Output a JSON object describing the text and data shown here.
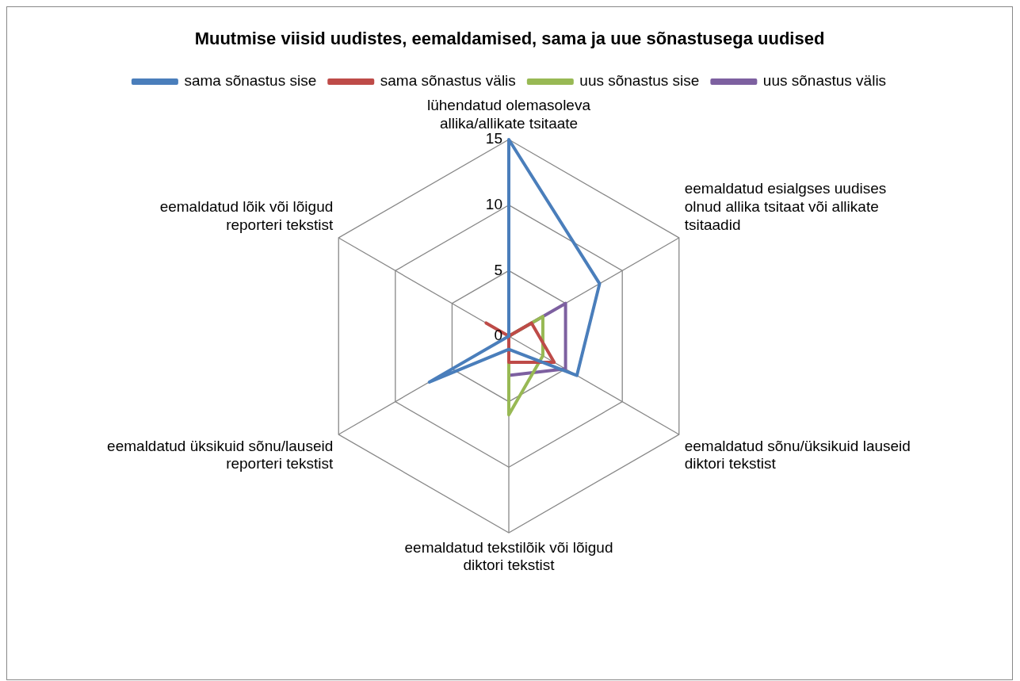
{
  "chart_data": {
    "type": "radar",
    "title": "Muutmise viisid uudistes, eemaldamised, sama ja uue sõnastusega uudised",
    "categories": [
      "lühendatud olemasoleva allika/allikate tsitaate",
      "eemaldatud esialgses uudises olnud allika tsitaat või allikate tsitaadid",
      "eemaldatud sõnu/üksikuid lauseid diktori tekstist",
      "eemaldatud tekstilõik või lõigud diktori tekstist",
      "eemaldatud üksikuid sõnu/lauseid reporteri tekstist",
      "eemaldatud lõik või lõigud reporteri tekstist"
    ],
    "series": [
      {
        "name": "sama sõnastus sise",
        "color": "#4a7ebb",
        "values": [
          15,
          8,
          6,
          1,
          7,
          0
        ]
      },
      {
        "name": "sama sõnastus välis",
        "color": "#be4b48",
        "values": [
          0,
          2,
          4,
          2,
          0,
          2
        ]
      },
      {
        "name": "uus sõnastus sise",
        "color": "#98b954",
        "values": [
          0,
          3,
          3,
          6,
          0,
          0
        ]
      },
      {
        "name": "uus sõnastus välis",
        "color": "#7d60a0",
        "values": [
          0,
          5,
          5,
          3,
          0,
          0
        ]
      }
    ],
    "ylim": [
      0,
      15
    ],
    "yticks": [
      0,
      5,
      10,
      15
    ],
    "grid": true,
    "legend": "top",
    "marker": "none",
    "line_style": "solid"
  }
}
